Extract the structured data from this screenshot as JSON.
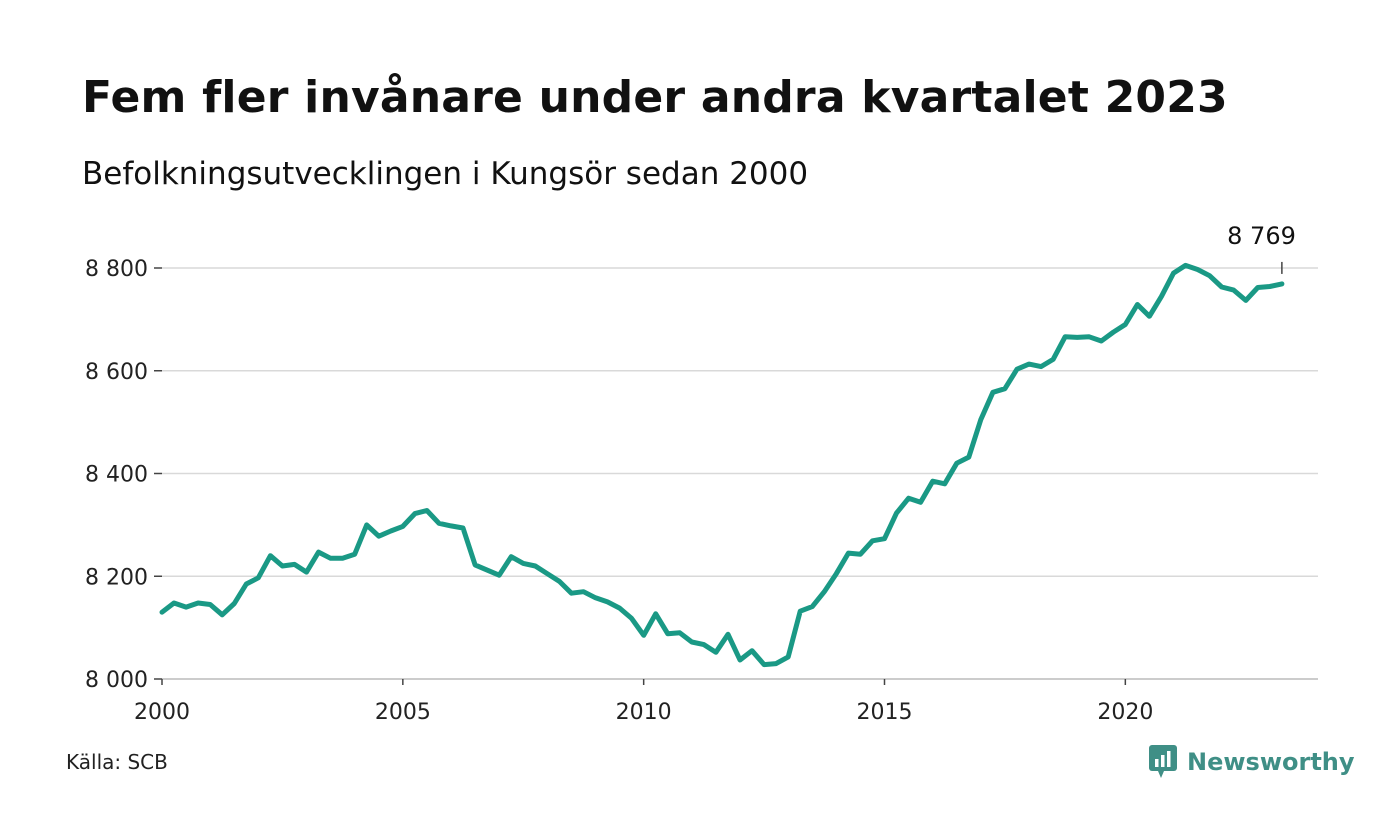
{
  "chart_data": {
    "type": "line",
    "title": "Fem fler invånare under andra kvartalet 2023",
    "subtitle": "Befolkningsutvecklingen i Kungsör sedan 2000",
    "xlabel": "",
    "ylabel": "",
    "xlim": [
      2000,
      2024
    ],
    "ylim": [
      8000,
      8800
    ],
    "x_ticks": [
      "2000",
      "2005",
      "2010",
      "2015",
      "2020"
    ],
    "y_ticks": [
      "8 000",
      "8 200",
      "8 400",
      "8 600",
      "8 800"
    ],
    "grid": "horizontal",
    "line_color": "#1a9985",
    "end_label": "8 769",
    "series": [
      {
        "x": [
          "2000Q1",
          "2000Q2",
          "2000Q3",
          "2000Q4",
          "2001Q1",
          "2001Q2",
          "2001Q3",
          "2001Q4",
          "2002Q1",
          "2002Q2",
          "2002Q3",
          "2002Q4",
          "2003Q1",
          "2003Q2",
          "2003Q3",
          "2003Q4",
          "2004Q1",
          "2004Q2",
          "2004Q3",
          "2004Q4",
          "2005Q1",
          "2005Q2",
          "2005Q3",
          "2005Q4",
          "2006Q1",
          "2006Q2",
          "2006Q3",
          "2006Q4",
          "2007Q1",
          "2007Q2",
          "2007Q3",
          "2007Q4",
          "2008Q1",
          "2008Q2",
          "2008Q3",
          "2008Q4",
          "2009Q1",
          "2009Q2",
          "2009Q3",
          "2009Q4",
          "2010Q1",
          "2010Q2",
          "2010Q3",
          "2010Q4",
          "2011Q1",
          "2011Q2",
          "2011Q3",
          "2011Q4",
          "2012Q1",
          "2012Q2",
          "2012Q3",
          "2012Q4",
          "2013Q1",
          "2013Q2",
          "2013Q3",
          "2013Q4",
          "2014Q1",
          "2014Q2",
          "2014Q3",
          "2014Q4",
          "2015Q1",
          "2015Q2",
          "2015Q3",
          "2015Q4",
          "2016Q1",
          "2016Q2",
          "2016Q3",
          "2016Q4",
          "2017Q1",
          "2017Q2",
          "2017Q3",
          "2017Q4",
          "2018Q1",
          "2018Q2",
          "2018Q3",
          "2018Q4",
          "2019Q1",
          "2019Q2",
          "2019Q3",
          "2019Q4",
          "2020Q1",
          "2020Q2",
          "2020Q3",
          "2020Q4",
          "2021Q1",
          "2021Q2",
          "2021Q3",
          "2021Q4",
          "2022Q1",
          "2022Q2",
          "2022Q3",
          "2022Q4",
          "2023Q1",
          "2023Q2"
        ],
        "values": [
          8130,
          8148,
          8140,
          8148,
          8145,
          8125,
          8147,
          8185,
          8197,
          8240,
          8220,
          8223,
          8208,
          8247,
          8235,
          8235,
          8243,
          8300,
          8278,
          8288,
          8297,
          8322,
          8328,
          8303,
          8298,
          8294,
          8222,
          8212,
          8202,
          8238,
          8225,
          8220,
          8205,
          8190,
          8167,
          8170,
          8158,
          8150,
          8138,
          8118,
          8085,
          8127,
          8088,
          8090,
          8072,
          8067,
          8052,
          8087,
          8037,
          8055,
          8028,
          8030,
          8043,
          8132,
          8141,
          8170,
          8205,
          8245,
          8243,
          8269,
          8273,
          8323,
          8352,
          8344,
          8385,
          8380,
          8420,
          8432,
          8505,
          8558,
          8565,
          8603,
          8613,
          8608,
          8622,
          8666,
          8665,
          8666,
          8658,
          8675,
          8690,
          8729,
          8706,
          8745,
          8790,
          8805,
          8797,
          8785,
          8763,
          8757,
          8737,
          8762,
          8764,
          8769
        ]
      }
    ]
  },
  "footer": {
    "source": "Källa: SCB",
    "brand": "Newsworthy"
  },
  "colors": {
    "line": "#1a9985",
    "grid": "#d9d9d9",
    "brand": "#3f8f86"
  }
}
